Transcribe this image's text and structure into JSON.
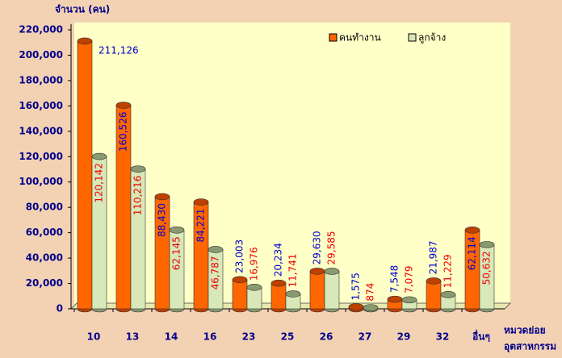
{
  "chart_data": {
    "type": "bar3d",
    "y_label": "จำนวน (คน)",
    "x_label": [
      "หมวดย่อย",
      "อุตสาหกรรม"
    ],
    "categories": [
      "10",
      "13",
      "14",
      "16",
      "23",
      "25",
      "26",
      "27",
      "29",
      "32",
      "อื่นๆ"
    ],
    "series": [
      {
        "name": "คนทำงาน",
        "color": "#ff6600",
        "values": [
          211126,
          160526,
          88430,
          84221,
          23003,
          20234,
          29630,
          1575,
          7548,
          21987,
          62114
        ],
        "value_labels": [
          "211,126",
          "160,526",
          "88,430",
          "84,221",
          "23,003",
          "20,234",
          "29,630",
          "1,575",
          "7,548",
          "21,987",
          "62,114"
        ]
      },
      {
        "name": "ลูกจ้าง",
        "color": "#d8e8b8",
        "values": [
          120142,
          110216,
          62145,
          46787,
          16976,
          11741,
          29585,
          874,
          7079,
          11229,
          50632
        ],
        "value_labels": [
          "120,142",
          "110,216",
          "62,145",
          "46,787",
          "16,976",
          "11,741",
          "29,585",
          "874",
          "7,079",
          "11,229",
          "50,632"
        ]
      }
    ],
    "ylim": [
      0,
      220000
    ],
    "yticks": [
      0,
      {
        "value": 20000,
        "label": "20,000"
      },
      {
        "value": 40000,
        "label": "40,000"
      },
      {
        "value": 60000,
        "label": "60,000"
      },
      {
        "value": 80000,
        "label": "80,000"
      },
      {
        "value": 100000,
        "label": "100,000"
      },
      {
        "value": 120000,
        "label": "120,000"
      },
      {
        "value": 140000,
        "label": "140,000"
      },
      {
        "value": 160000,
        "label": "160,000"
      },
      {
        "value": 180000,
        "label": "180,000"
      },
      {
        "value": 200000,
        "label": "200,000"
      },
      {
        "value": 220000,
        "label": "220,000"
      }
    ],
    "legend": "top-right"
  }
}
